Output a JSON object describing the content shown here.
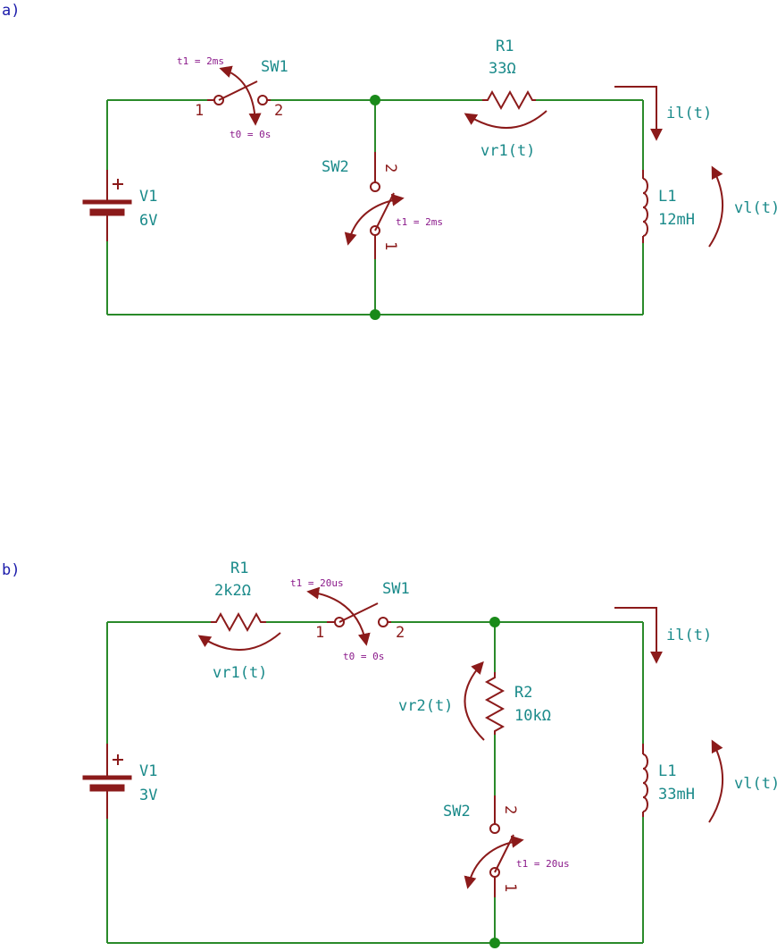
{
  "circuit_a": {
    "label": "a)",
    "V1": {
      "ref": "V1",
      "value": "6V"
    },
    "R1": {
      "ref": "R1",
      "value": "33Ω"
    },
    "L1": {
      "ref": "L1",
      "value": "12mH"
    },
    "SW1": {
      "ref": "SW1",
      "pin1": "1",
      "pin2": "2",
      "t1": "t1 = 2ms",
      "t0": "t0 = 0s"
    },
    "SW2": {
      "ref": "SW2",
      "pin1": "1",
      "pin2": "2",
      "t1": "t1 = 2ms"
    },
    "vr1": "vr1(t)",
    "il": "il(t)",
    "vl": "vl(t)"
  },
  "circuit_b": {
    "label": "b)",
    "V1": {
      "ref": "V1",
      "value": "3V"
    },
    "R1": {
      "ref": "R1",
      "value": "2k2Ω"
    },
    "R2": {
      "ref": "R2",
      "value": "10kΩ"
    },
    "L1": {
      "ref": "L1",
      "value": "33mH"
    },
    "SW1": {
      "ref": "SW1",
      "pin1": "1",
      "pin2": "2",
      "t1": "t1 = 20us",
      "t0": "t0 = 0s"
    },
    "SW2": {
      "ref": "SW2",
      "pin1": "1",
      "pin2": "2",
      "t1": "t1 = 20us"
    },
    "vr1": "vr1(t)",
    "vr2": "vr2(t)",
    "il": "il(t)",
    "vl": "vl(t)"
  }
}
